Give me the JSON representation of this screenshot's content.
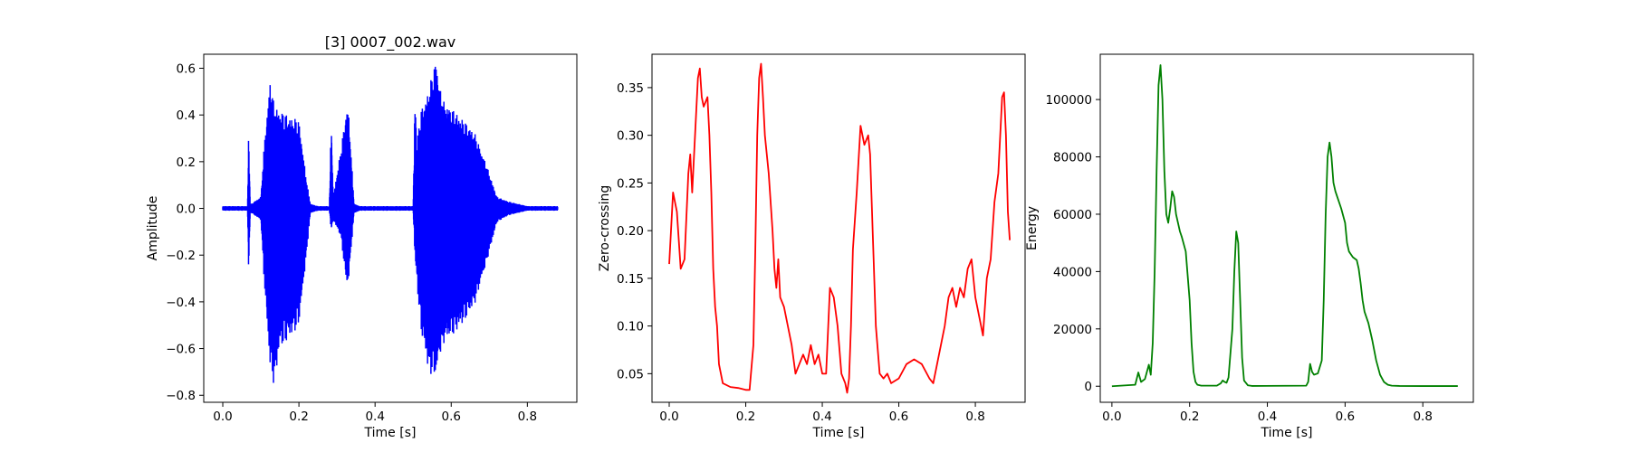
{
  "chart_data": [
    {
      "type": "line",
      "title": "[3] 0007_002.wav",
      "xlabel": "Time [s]",
      "ylabel": "Amplitude",
      "xlim": [
        -0.05,
        0.93
      ],
      "ylim": [
        -0.83,
        0.66
      ],
      "xticks": [
        0.0,
        0.2,
        0.4,
        0.6,
        0.8
      ],
      "xtick_labels": [
        "0.0",
        "0.2",
        "0.4",
        "0.6",
        "0.8"
      ],
      "yticks": [
        -0.8,
        -0.6,
        -0.4,
        -0.2,
        0.0,
        0.2,
        0.4,
        0.6
      ],
      "ytick_labels": [
        "−0.8",
        "−0.6",
        "−0.4",
        "−0.2",
        "0.0",
        "0.2",
        "0.4",
        "0.6"
      ],
      "color": "#0000ff",
      "grid": false,
      "style": "waveform",
      "envelope": {
        "x": [
          0.0,
          0.065,
          0.068,
          0.072,
          0.075,
          0.1,
          0.11,
          0.125,
          0.135,
          0.15,
          0.18,
          0.2,
          0.22,
          0.23,
          0.25,
          0.28,
          0.285,
          0.29,
          0.31,
          0.325,
          0.33,
          0.345,
          0.36,
          0.5,
          0.505,
          0.51,
          0.52,
          0.54,
          0.56,
          0.57,
          0.58,
          0.62,
          0.66,
          0.69,
          0.72,
          0.75,
          0.8,
          0.88
        ],
        "top": [
          0.01,
          0.01,
          0.35,
          0.02,
          0.02,
          0.05,
          0.3,
          0.56,
          0.44,
          0.42,
          0.39,
          0.38,
          0.12,
          0.02,
          0.01,
          0.01,
          0.4,
          0.05,
          0.25,
          0.43,
          0.43,
          0.02,
          0.01,
          0.01,
          0.5,
          0.28,
          0.42,
          0.5,
          0.65,
          0.52,
          0.46,
          0.4,
          0.33,
          0.2,
          0.05,
          0.03,
          0.01,
          0.01
        ],
        "bottom": [
          -0.01,
          -0.01,
          -0.29,
          -0.02,
          -0.02,
          -0.05,
          -0.35,
          -0.7,
          -0.76,
          -0.6,
          -0.55,
          -0.5,
          -0.2,
          -0.02,
          -0.01,
          -0.01,
          -0.1,
          -0.05,
          -0.12,
          -0.33,
          -0.32,
          -0.02,
          -0.01,
          -0.01,
          -0.22,
          -0.32,
          -0.52,
          -0.7,
          -0.73,
          -0.63,
          -0.58,
          -0.52,
          -0.42,
          -0.25,
          -0.06,
          -0.03,
          -0.01,
          -0.01
        ]
      }
    },
    {
      "type": "line",
      "title": "",
      "xlabel": "Time [s]",
      "ylabel": "Zero-crossing",
      "xlim": [
        -0.045,
        0.93
      ],
      "ylim": [
        0.02,
        0.385
      ],
      "xticks": [
        0.0,
        0.2,
        0.4,
        0.6,
        0.8
      ],
      "xtick_labels": [
        "0.0",
        "0.2",
        "0.4",
        "0.6",
        "0.8"
      ],
      "yticks": [
        0.05,
        0.1,
        0.15,
        0.2,
        0.25,
        0.3,
        0.35
      ],
      "ytick_labels": [
        "0.05",
        "0.10",
        "0.15",
        "0.20",
        "0.25",
        "0.30",
        "0.35"
      ],
      "color": "#ff0000",
      "grid": false,
      "x": [
        0.0,
        0.01,
        0.02,
        0.03,
        0.04,
        0.05,
        0.055,
        0.06,
        0.07,
        0.075,
        0.08,
        0.085,
        0.09,
        0.1,
        0.105,
        0.11,
        0.115,
        0.12,
        0.125,
        0.13,
        0.14,
        0.16,
        0.18,
        0.2,
        0.21,
        0.22,
        0.225,
        0.23,
        0.235,
        0.24,
        0.245,
        0.25,
        0.26,
        0.27,
        0.275,
        0.28,
        0.285,
        0.29,
        0.3,
        0.31,
        0.32,
        0.33,
        0.34,
        0.35,
        0.36,
        0.37,
        0.38,
        0.39,
        0.4,
        0.41,
        0.42,
        0.43,
        0.44,
        0.45,
        0.46,
        0.465,
        0.47,
        0.475,
        0.48,
        0.49,
        0.5,
        0.51,
        0.52,
        0.525,
        0.53,
        0.54,
        0.55,
        0.56,
        0.57,
        0.58,
        0.6,
        0.62,
        0.64,
        0.66,
        0.68,
        0.69,
        0.7,
        0.71,
        0.72,
        0.73,
        0.74,
        0.75,
        0.76,
        0.77,
        0.78,
        0.79,
        0.8,
        0.81,
        0.82,
        0.83,
        0.84,
        0.85,
        0.86,
        0.865,
        0.87,
        0.875,
        0.88,
        0.885,
        0.89
      ],
      "y": [
        0.165,
        0.24,
        0.22,
        0.16,
        0.17,
        0.26,
        0.28,
        0.24,
        0.32,
        0.36,
        0.37,
        0.34,
        0.33,
        0.34,
        0.3,
        0.24,
        0.16,
        0.12,
        0.1,
        0.06,
        0.04,
        0.036,
        0.035,
        0.033,
        0.033,
        0.08,
        0.18,
        0.3,
        0.36,
        0.375,
        0.34,
        0.3,
        0.26,
        0.2,
        0.16,
        0.14,
        0.17,
        0.13,
        0.12,
        0.1,
        0.08,
        0.05,
        0.06,
        0.07,
        0.06,
        0.08,
        0.06,
        0.07,
        0.05,
        0.05,
        0.14,
        0.13,
        0.1,
        0.05,
        0.04,
        0.03,
        0.045,
        0.1,
        0.18,
        0.24,
        0.31,
        0.29,
        0.3,
        0.28,
        0.22,
        0.1,
        0.05,
        0.045,
        0.05,
        0.04,
        0.045,
        0.06,
        0.065,
        0.06,
        0.045,
        0.04,
        0.06,
        0.08,
        0.1,
        0.13,
        0.14,
        0.12,
        0.14,
        0.13,
        0.16,
        0.17,
        0.13,
        0.11,
        0.09,
        0.15,
        0.17,
        0.23,
        0.26,
        0.3,
        0.34,
        0.345,
        0.3,
        0.22,
        0.19
      ]
    },
    {
      "type": "line",
      "title": "",
      "xlabel": "Time [s]",
      "ylabel": "Energy",
      "xlim": [
        -0.03,
        0.93
      ],
      "ylim": [
        -5600,
        115800
      ],
      "xticks": [
        0.0,
        0.2,
        0.4,
        0.6,
        0.8
      ],
      "xtick_labels": [
        "0.0",
        "0.2",
        "0.4",
        "0.6",
        "0.8"
      ],
      "yticks": [
        0,
        20000,
        40000,
        60000,
        80000,
        100000
      ],
      "ytick_labels": [
        "0",
        "20000",
        "40000",
        "60000",
        "80000",
        "100000"
      ],
      "color": "#008000",
      "grid": false,
      "x": [
        0.0,
        0.06,
        0.068,
        0.075,
        0.085,
        0.095,
        0.1,
        0.105,
        0.11,
        0.115,
        0.12,
        0.125,
        0.13,
        0.135,
        0.14,
        0.145,
        0.15,
        0.155,
        0.16,
        0.165,
        0.17,
        0.175,
        0.18,
        0.19,
        0.2,
        0.205,
        0.21,
        0.215,
        0.22,
        0.23,
        0.27,
        0.28,
        0.285,
        0.29,
        0.295,
        0.3,
        0.31,
        0.315,
        0.32,
        0.325,
        0.33,
        0.335,
        0.34,
        0.35,
        0.36,
        0.5,
        0.505,
        0.51,
        0.515,
        0.52,
        0.53,
        0.54,
        0.545,
        0.55,
        0.555,
        0.56,
        0.565,
        0.57,
        0.575,
        0.58,
        0.59,
        0.6,
        0.605,
        0.61,
        0.615,
        0.62,
        0.625,
        0.63,
        0.635,
        0.64,
        0.645,
        0.65,
        0.66,
        0.67,
        0.68,
        0.69,
        0.7,
        0.71,
        0.72,
        0.74,
        0.8,
        0.89
      ],
      "y": [
        0,
        500,
        4800,
        1500,
        2500,
        7500,
        4000,
        15000,
        40000,
        75000,
        105000,
        112000,
        100000,
        75000,
        60000,
        57000,
        62000,
        68000,
        66000,
        60000,
        57000,
        54000,
        52000,
        47000,
        30000,
        15000,
        5000,
        1500,
        500,
        200,
        200,
        1000,
        2000,
        1500,
        1200,
        3000,
        20000,
        40000,
        54000,
        50000,
        30000,
        10000,
        2000,
        300,
        100,
        200,
        1500,
        7800,
        5000,
        4000,
        4500,
        9000,
        30000,
        60000,
        80000,
        85000,
        80000,
        71000,
        68000,
        66000,
        62000,
        57000,
        50000,
        47000,
        46000,
        45000,
        44500,
        44000,
        41000,
        36000,
        30000,
        26000,
        22000,
        16000,
        9000,
        4000,
        1500,
        500,
        200,
        100,
        50,
        50
      ]
    }
  ]
}
